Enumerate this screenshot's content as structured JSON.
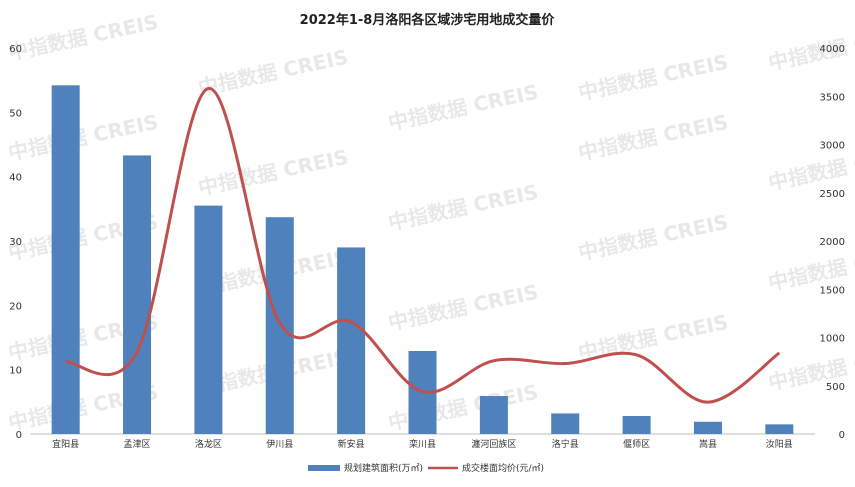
{
  "watermark": "中指数据 CREIS",
  "chart_data": {
    "type": "bar",
    "title": "2022年1-8月洛阳各区域涉宅用地成交量价",
    "categories": [
      "宜阳县",
      "孟津区",
      "洛龙区",
      "伊川县",
      "新安县",
      "栾川县",
      "瀍河回族区",
      "洛宁县",
      "偃师区",
      "嵩县",
      "汝阳县"
    ],
    "series": [
      {
        "name": "规划建筑面积(万㎡)",
        "type": "bar",
        "axis": "left",
        "color": "#4f81bd",
        "values": [
          54.2,
          43.3,
          35.5,
          33.7,
          29.0,
          12.9,
          5.9,
          3.2,
          2.8,
          1.9,
          1.5
        ]
      },
      {
        "name": "成交楼面均价(元/㎡)",
        "type": "line",
        "axis": "right",
        "color": "#c0504d",
        "values": [
          750,
          850,
          3580,
          1150,
          1160,
          440,
          760,
          730,
          820,
          330,
          840
        ]
      }
    ],
    "y_left": {
      "min": 0,
      "max": 60,
      "ticks": [
        0,
        10,
        20,
        30,
        40,
        50,
        60
      ]
    },
    "y_right": {
      "min": 0,
      "max": 4000,
      "ticks": [
        0,
        500,
        1000,
        1500,
        2000,
        2500,
        3000,
        3500,
        4000
      ]
    },
    "grid": false,
    "legend": "bottom"
  }
}
